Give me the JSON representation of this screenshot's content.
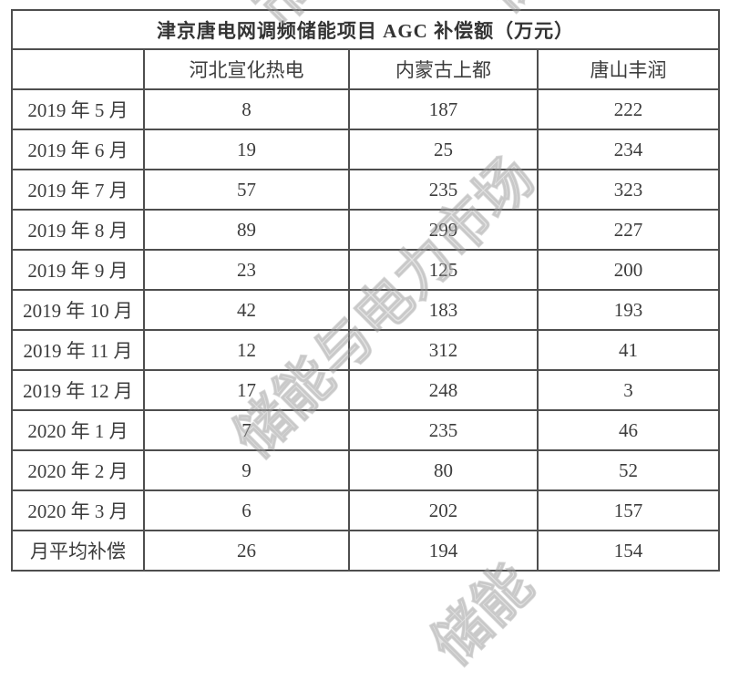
{
  "table": {
    "title": "津京唐电网调频储能项目 AGC 补偿额（万元）",
    "columns": [
      "",
      "河北宣化热电",
      "内蒙古上都",
      "唐山丰润"
    ],
    "rows": [
      {
        "label": "2019 年 5 月",
        "values": [
          "8",
          "187",
          "222"
        ]
      },
      {
        "label": "2019 年 6 月",
        "values": [
          "19",
          "25",
          "234"
        ]
      },
      {
        "label": "2019 年 7 月",
        "values": [
          "57",
          "235",
          "323"
        ]
      },
      {
        "label": "2019 年 8 月",
        "values": [
          "89",
          "299",
          "227"
        ]
      },
      {
        "label": "2019 年 9 月",
        "values": [
          "23",
          "125",
          "200"
        ]
      },
      {
        "label": "2019 年 10 月",
        "values": [
          "42",
          "183",
          "193"
        ]
      },
      {
        "label": "2019 年 11 月",
        "values": [
          "12",
          "312",
          "41"
        ]
      },
      {
        "label": "2019 年 12 月",
        "values": [
          "17",
          "248",
          "3"
        ]
      },
      {
        "label": "2020 年 1 月",
        "values": [
          "7",
          "235",
          "46"
        ]
      },
      {
        "label": "2020 年 2 月",
        "values": [
          "9",
          "80",
          "52"
        ]
      },
      {
        "label": "2020 年 3 月",
        "values": [
          "6",
          "202",
          "157"
        ]
      },
      {
        "label": "月平均补偿",
        "values": [
          "26",
          "194",
          "154"
        ]
      }
    ]
  },
  "watermark": {
    "text": "储能与电力市场",
    "color": "#a8a8a8",
    "fragments": {
      "top_left": "市场",
      "top_right": "储",
      "bottom": "储能"
    }
  },
  "colors": {
    "border": "#4e4e4e",
    "text": "#3c3c3c",
    "background": "#ffffff"
  }
}
